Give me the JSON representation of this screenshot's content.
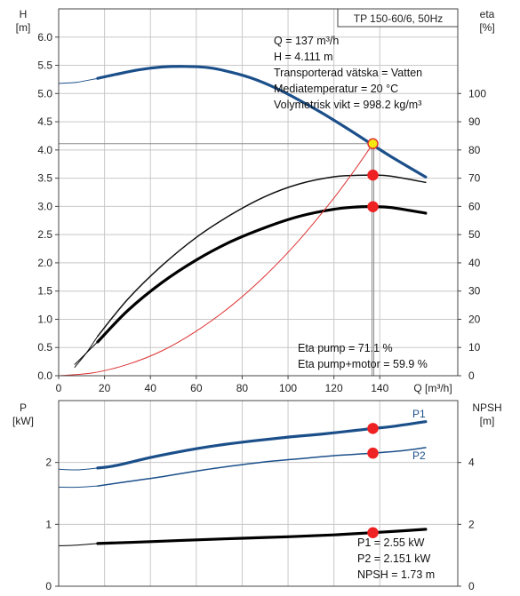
{
  "chart_data": [
    {
      "type": "line",
      "title": "TP 150-60/6, 50Hz",
      "xlabel": "Q [m³/h]",
      "x_label_q": "Q",
      "x_label_unit": "[m³/h]",
      "ylabel_left": "H",
      "ylabel_left_unit": "[m]",
      "ylabel_right": "eta",
      "ylabel_right_unit": "[%]",
      "xlim": [
        0,
        174
      ],
      "ylim_left": [
        0,
        6.5
      ],
      "ylim_right": [
        0,
        130
      ],
      "x_ticks": [
        0,
        20,
        40,
        60,
        80,
        100,
        120,
        140
      ],
      "y_left_ticks": [
        0.0,
        0.5,
        1.0,
        1.5,
        2.0,
        2.5,
        3.0,
        3.5,
        4.0,
        4.5,
        5.0,
        5.5,
        6.0
      ],
      "y_left_tick_labels": [
        "0.0",
        "0.5",
        "1.0",
        "1.5",
        "2.0",
        "2.5",
        "3.0",
        "3.5",
        "4.0",
        "4.5",
        "5.0",
        "5.5",
        "6.0"
      ],
      "y_right_ticks": [
        0,
        10,
        20,
        30,
        40,
        50,
        60,
        70,
        80,
        90,
        100
      ],
      "grid": true,
      "series": [
        {
          "axis": "left",
          "color": "#1b4f8a",
          "width": 3.2,
          "x": [
            17,
            25,
            35,
            45,
            55,
            65,
            75,
            85,
            95,
            105,
            115,
            125,
            135,
            145,
            160
          ],
          "y": [
            5.27,
            5.34,
            5.42,
            5.47,
            5.48,
            5.46,
            5.38,
            5.26,
            5.09,
            4.88,
            4.65,
            4.4,
            4.14,
            3.88,
            3.52
          ]
        },
        {
          "axis": "left",
          "color": "#1b4f8a",
          "width": 1,
          "x": [
            0,
            8,
            17
          ],
          "y": [
            5.18,
            5.2,
            5.27
          ]
        },
        {
          "axis": "right",
          "color": "#111111",
          "width": 1.5,
          "x": [
            17,
            30,
            45,
            60,
            75,
            90,
            105,
            120,
            130,
            137,
            145,
            160
          ],
          "y": [
            14,
            27,
            39,
            49,
            57,
            63.5,
            68,
            70.5,
            71,
            71.1,
            70.7,
            68.5
          ]
        },
        {
          "axis": "right",
          "color": "#111111",
          "width": 1,
          "x": [
            7,
            12,
            17
          ],
          "y": [
            3,
            8,
            14
          ]
        },
        {
          "axis": "right",
          "color": "#000000",
          "width": 3.2,
          "x": [
            17,
            30,
            45,
            60,
            75,
            90,
            105,
            120,
            130,
            137,
            145,
            160
          ],
          "y": [
            12,
            23,
            33,
            41,
            47.5,
            52.5,
            56.5,
            59,
            59.8,
            59.9,
            59.6,
            57.6
          ]
        },
        {
          "axis": "right",
          "color": "#000000",
          "width": 1,
          "x": [
            7,
            12,
            17
          ],
          "y": [
            4,
            8,
            12
          ]
        },
        {
          "axis": "left",
          "color": "#dd3333",
          "width": 1,
          "x": [
            0,
            15,
            30,
            45,
            60,
            75,
            90,
            105,
            120,
            130,
            137
          ],
          "y": [
            0,
            0.05,
            0.2,
            0.44,
            0.79,
            1.23,
            1.77,
            2.41,
            3.15,
            3.7,
            4.111
          ]
        }
      ],
      "markers": [
        {
          "x": 137,
          "y": 4.111,
          "axis": "left",
          "fill": "#f5e612",
          "stroke": "#dd3333"
        },
        {
          "x": 137,
          "y": 71.1,
          "axis": "right",
          "fill": "#ee2222",
          "stroke": "#ee2222"
        },
        {
          "x": 137,
          "y": 59.9,
          "axis": "right",
          "fill": "#ee2222",
          "stroke": "#ee2222"
        }
      ],
      "operating_point": {
        "q": 137,
        "h": 4.111
      },
      "info_lines": [
        "Q = 137 m³/h",
        "H = 4.111 m",
        "Transporterad vätska = Vatten",
        "Mediatemperatur = 20 °C",
        "Volymetrisk vikt = 998.2 kg/m³"
      ],
      "eta_lines": [
        "Eta pump = 71.1 %",
        "Eta pump+motor = 59.9 %"
      ]
    },
    {
      "type": "line",
      "ylabel_left": "P",
      "ylabel_left_unit": "[kW]",
      "ylabel_right": "NPSH",
      "ylabel_right_unit": "[m]",
      "xlim": [
        0,
        174
      ],
      "ylim_left": [
        0,
        3
      ],
      "ylim_right": [
        0,
        6
      ],
      "y_left_ticks": [
        0,
        1,
        2
      ],
      "y_right_ticks": [
        0,
        2,
        4
      ],
      "grid": true,
      "series": [
        {
          "name": "P1",
          "axis": "left",
          "color": "#1b4f8a",
          "width": 3.2,
          "x": [
            17,
            25,
            40,
            55,
            70,
            85,
            100,
            115,
            130,
            137,
            145,
            160
          ],
          "y": [
            1.91,
            1.95,
            2.08,
            2.19,
            2.28,
            2.35,
            2.41,
            2.46,
            2.52,
            2.55,
            2.58,
            2.66
          ]
        },
        {
          "axis": "left",
          "color": "#1b4f8a",
          "width": 1,
          "x": [
            0,
            8,
            17
          ],
          "y": [
            1.89,
            1.88,
            1.91
          ]
        },
        {
          "name": "P2",
          "axis": "left",
          "color": "#1b4f8a",
          "width": 1.5,
          "x": [
            17,
            30,
            45,
            60,
            75,
            90,
            105,
            120,
            137,
            150,
            160
          ],
          "y": [
            1.62,
            1.69,
            1.77,
            1.86,
            1.94,
            2.01,
            2.06,
            2.11,
            2.151,
            2.19,
            2.24
          ]
        },
        {
          "axis": "left",
          "color": "#1b4f8a",
          "width": 1,
          "x": [
            0,
            8,
            17
          ],
          "y": [
            1.6,
            1.6,
            1.62
          ]
        },
        {
          "axis": "right",
          "color": "#000000",
          "width": 3.2,
          "x": [
            17,
            40,
            60,
            80,
            100,
            120,
            137,
            150,
            160
          ],
          "y": [
            1.38,
            1.44,
            1.5,
            1.55,
            1.6,
            1.66,
            1.73,
            1.79,
            1.84
          ]
        },
        {
          "axis": "right",
          "color": "#000000",
          "width": 1,
          "x": [
            0,
            8,
            17
          ],
          "y": [
            1.31,
            1.33,
            1.38
          ]
        }
      ],
      "markers": [
        {
          "x": 137,
          "y": 2.55,
          "axis": "left",
          "fill": "#ee2222",
          "stroke": "#ee2222"
        },
        {
          "x": 137,
          "y": 2.151,
          "axis": "left",
          "fill": "#ee2222",
          "stroke": "#ee2222"
        },
        {
          "x": 137,
          "y": 1.73,
          "axis": "right",
          "fill": "#ee2222",
          "stroke": "#ee2222"
        }
      ],
      "curve_labels": [
        "P1",
        "P2"
      ],
      "info_lines": [
        "P1 = 2.55 kW",
        "P2 = 2.151 kW",
        "NPSH = 1.73 m"
      ]
    }
  ]
}
